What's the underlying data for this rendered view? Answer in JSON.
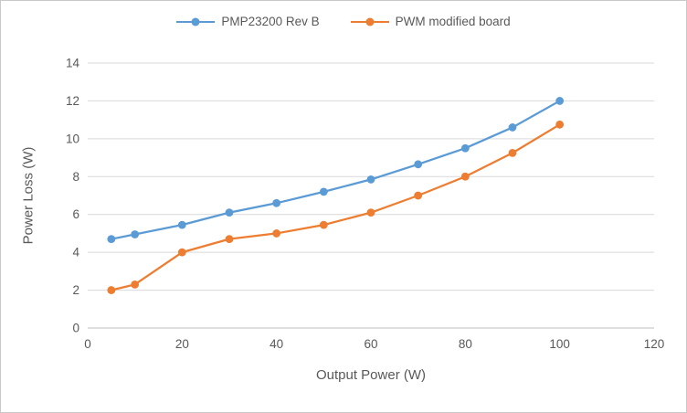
{
  "chart_data": {
    "type": "line",
    "title": "",
    "xlabel": "Output Power (W)",
    "ylabel": "Power Loss (W)",
    "x": [
      5,
      10,
      20,
      30,
      40,
      50,
      60,
      70,
      80,
      90,
      100
    ],
    "series": [
      {
        "name": "PMP23200 Rev B",
        "color": "#5B9BD5",
        "values": [
          4.7,
          4.95,
          5.45,
          6.1,
          6.6,
          7.2,
          7.85,
          8.65,
          9.5,
          10.6,
          12.0
        ]
      },
      {
        "name": "PWM modified board",
        "color": "#ED7D31",
        "values": [
          2.0,
          2.3,
          4.0,
          4.7,
          5.0,
          5.45,
          6.1,
          7.0,
          8.0,
          9.25,
          10.75
        ]
      }
    ],
    "xlim": [
      0,
      120
    ],
    "ylim": [
      0,
      14
    ],
    "xticks": [
      0,
      20,
      40,
      60,
      80,
      100,
      120
    ],
    "yticks": [
      0,
      2,
      4,
      6,
      8,
      10,
      12,
      14
    ],
    "grid": "horizontal",
    "legend_position": "top"
  },
  "colors": {
    "grid": "#D9D9D9",
    "axis": "#BFBFBF",
    "text": "#595959"
  }
}
